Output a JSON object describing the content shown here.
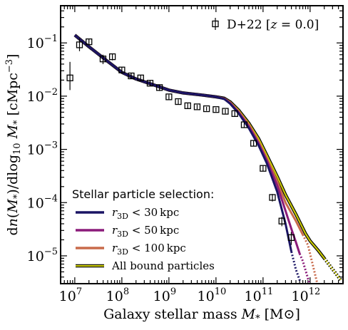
{
  "chart_data": {
    "type": "line",
    "title": "",
    "xlabel": "Galaxy stellar mass M* [M⊙]",
    "ylabel": "dn(M*)/dlog10 M* [cMpc⁻³]",
    "xscale": "log",
    "yscale": "log",
    "xlim": [
      5000000.0,
      5000000000000.0
    ],
    "ylim": [
      3e-06,
      0.5
    ],
    "x_tick_labels": [
      "10^7",
      "10^8",
      "10^9",
      "10^10",
      "10^11",
      "10^12"
    ],
    "y_tick_labels": [
      "10^-5",
      "10^-4",
      "10^-3",
      "10^-2",
      "10^-1"
    ],
    "legend_title": "Stellar particle selection:",
    "legend_placement": "lower-left",
    "observations": {
      "name": "D+22 [z = 0.0]",
      "marker": "open-square",
      "x": [
        7900000.0,
        12600000.0,
        20000000.0,
        39800000.0,
        63000000.0,
        100000000.0,
        158000000.0,
        251000000.0,
        398000000.0,
        630000000.0,
        1000000000.0,
        1580000000.0,
        2510000000.0,
        3980000000.0,
        6300000000.0,
        10000000000.0,
        15800000000.0,
        25100000000.0,
        39800000000.0,
        63000000000.0,
        100000000000.0,
        158000000000.0,
        251000000000.0,
        398000000000.0
      ],
      "y": [
        0.022,
        0.092,
        0.105,
        0.05,
        0.055,
        0.031,
        0.024,
        0.022,
        0.0175,
        0.0145,
        0.0097,
        0.0079,
        0.0066,
        0.0063,
        0.0058,
        0.0056,
        0.0052,
        0.0047,
        0.0029,
        0.0013,
        0.00044,
        0.000125,
        4.5e-05,
        2.2e-05
      ],
      "err_low": [
        0.009,
        0.022,
        0.012,
        0.01,
        0.008,
        0.004,
        0.003,
        0.003,
        0.002,
        0.002,
        0.001,
        0.0008,
        0.0007,
        0.0006,
        0.0005,
        0.0005,
        0.0005,
        0.0005,
        0.0003,
        0.00015,
        5e-05,
        2e-05,
        9e-06,
        6e-06
      ],
      "err_high": [
        0.022,
        0.03,
        0.012,
        0.01,
        0.008,
        0.004,
        0.003,
        0.003,
        0.002,
        0.002,
        0.001,
        0.0008,
        0.0007,
        0.0006,
        0.0005,
        0.0005,
        0.0005,
        0.0005,
        0.0003,
        0.00015,
        5e-05,
        2e-05,
        9e-06,
        6e-06
      ]
    },
    "series": [
      {
        "name": "r3D < 30 kpc",
        "color": "#1a1464",
        "x": [
          10000000.0,
          20000000.0,
          50000000.0,
          100000000.0,
          200000000.0,
          500000000.0,
          1000000000.0,
          2000000000.0,
          5000000000.0,
          10000000000.0,
          15000000000.0,
          20000000000.0,
          30000000000.0,
          50000000000.0,
          80000000000.0,
          120000000000.0,
          200000000000.0,
          300000000000.0,
          400000000000.0,
          500000000000.0
        ],
        "y": [
          0.14,
          0.085,
          0.045,
          0.028,
          0.021,
          0.016,
          0.013,
          0.0115,
          0.0105,
          0.0097,
          0.0088,
          0.0072,
          0.0048,
          0.0025,
          0.0012,
          0.00055,
          0.00016,
          4e-05,
          1.2e-05,
          5.5e-06
        ],
        "dotted_from": 400000000000.0,
        "dotted_to_x": 620000000000.0,
        "dotted_to_y": 3.2e-06
      },
      {
        "name": "r3D < 50 kpc",
        "color": "#8b1b7a",
        "x": [
          10000000.0,
          20000000.0,
          50000000.0,
          100000000.0,
          200000000.0,
          500000000.0,
          1000000000.0,
          2000000000.0,
          5000000000.0,
          10000000000.0,
          15000000000.0,
          20000000000.0,
          30000000000.0,
          50000000000.0,
          80000000000.0,
          120000000000.0,
          200000000000.0,
          300000000000.0,
          400000000000.0,
          500000000000.0,
          600000000000.0,
          700000000000.0
        ],
        "y": [
          0.14,
          0.085,
          0.045,
          0.028,
          0.021,
          0.016,
          0.013,
          0.0115,
          0.0105,
          0.0097,
          0.0089,
          0.0074,
          0.005,
          0.0027,
          0.0013,
          0.00062,
          0.00021,
          7e-05,
          3.2e-05,
          1.8e-05,
          1.1e-05,
          8e-06
        ],
        "dotted_from": 600000000000.0,
        "dotted_to_x": 950000000000.0,
        "dotted_to_y": 3.2e-06
      },
      {
        "name": "r3D < 100 kpc",
        "color": "#c86a4a",
        "x": [
          10000000.0,
          20000000.0,
          50000000.0,
          100000000.0,
          200000000.0,
          500000000.0,
          1000000000.0,
          2000000000.0,
          5000000000.0,
          10000000000.0,
          15000000000.0,
          20000000000.0,
          30000000000.0,
          50000000000.0,
          80000000000.0,
          120000000000.0,
          200000000000.0,
          300000000000.0,
          500000000000.0,
          700000000000.0,
          900000000000.0
        ],
        "y": [
          0.14,
          0.085,
          0.045,
          0.028,
          0.021,
          0.016,
          0.013,
          0.0115,
          0.0105,
          0.0097,
          0.009,
          0.0076,
          0.0052,
          0.0029,
          0.0014,
          0.00067,
          0.00025,
          0.0001,
          4.5e-05,
          2.5e-05,
          1.6e-05
        ],
        "dotted_from": 700000000000.0,
        "dotted_to_x": 1400000000000.0,
        "dotted_to_y": 3.2e-06
      },
      {
        "name": "All bound particles",
        "color": "#c8c800",
        "x": [
          10000000.0,
          20000000.0,
          50000000.0,
          100000000.0,
          200000000.0,
          500000000.0,
          1000000000.0,
          2000000000.0,
          5000000000.0,
          10000000000.0,
          15000000000.0,
          20000000000.0,
          30000000000.0,
          50000000000.0,
          80000000000.0,
          120000000000.0,
          200000000000.0,
          300000000000.0,
          500000000000.0,
          800000000000.0,
          1000000000000.0,
          1500000000000.0,
          2000000000000.0
        ],
        "y": [
          0.14,
          0.085,
          0.045,
          0.028,
          0.021,
          0.016,
          0.013,
          0.0115,
          0.0105,
          0.0097,
          0.0091,
          0.0078,
          0.0055,
          0.0031,
          0.0016,
          0.00078,
          0.00031,
          0.00014,
          6e-05,
          2.6e-05,
          1.9e-05,
          1.25e-05,
          9e-06
        ],
        "dotted_from": 2000000000000.0,
        "dotted_to_x": 4500000000000.0,
        "dotted_to_y": 3.5e-06
      }
    ]
  }
}
